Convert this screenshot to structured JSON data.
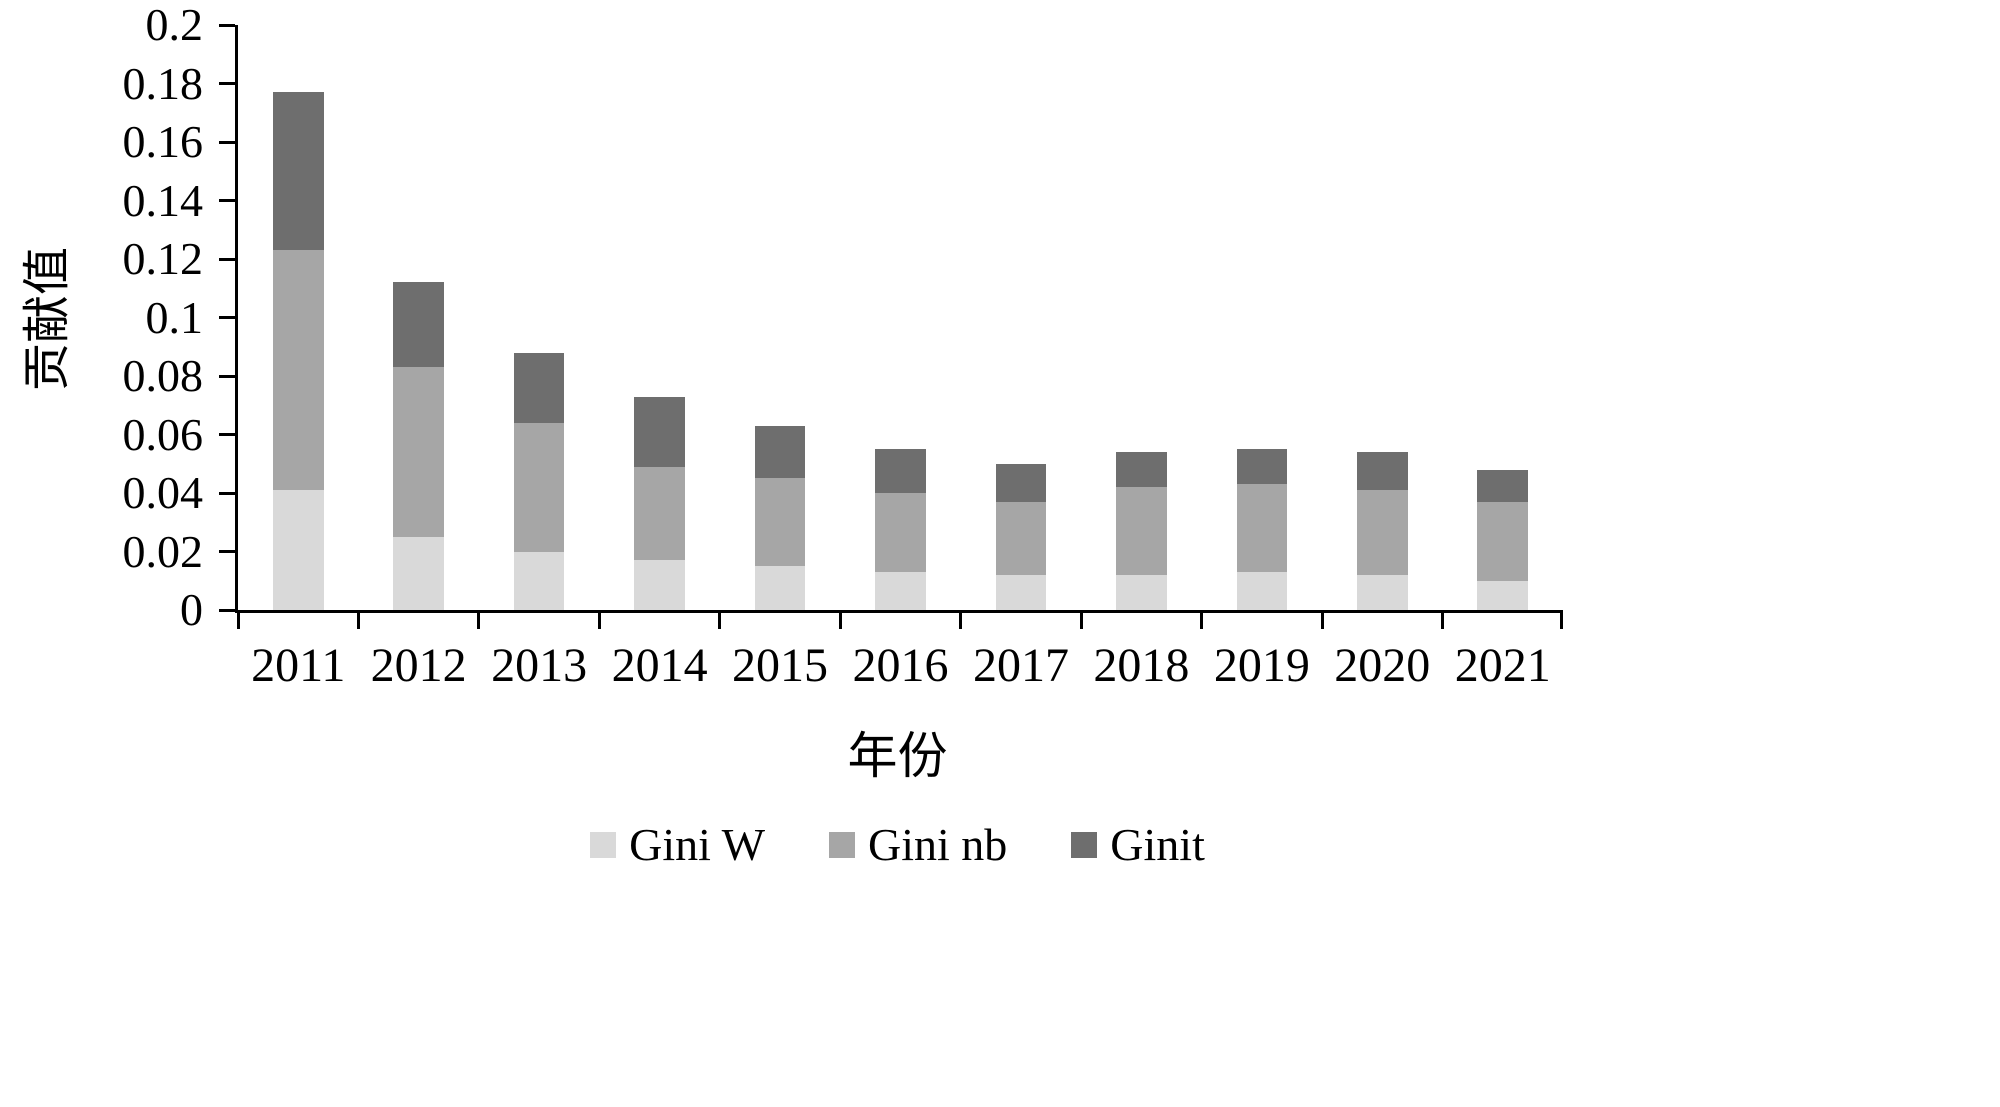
{
  "chart_data": {
    "type": "bar",
    "stacked": true,
    "title": "",
    "xlabel": "年份",
    "ylabel": "贡献值",
    "categories": [
      "2011",
      "2012",
      "2013",
      "2014",
      "2015",
      "2016",
      "2017",
      "2018",
      "2019",
      "2020",
      "2021"
    ],
    "series": [
      {
        "name": "Gini W",
        "color": "#d9d9d9",
        "values": [
          0.041,
          0.025,
          0.02,
          0.017,
          0.015,
          0.013,
          0.012,
          0.012,
          0.013,
          0.012,
          0.01
        ]
      },
      {
        "name": "Gini nb",
        "color": "#a6a6a6",
        "values": [
          0.082,
          0.058,
          0.044,
          0.032,
          0.03,
          0.027,
          0.025,
          0.03,
          0.03,
          0.029,
          0.027
        ]
      },
      {
        "name": "Ginit",
        "color": "#6e6e6e",
        "values": [
          0.054,
          0.029,
          0.024,
          0.024,
          0.018,
          0.015,
          0.013,
          0.012,
          0.012,
          0.013,
          0.011
        ]
      }
    ],
    "ylim": [
      0,
      0.2
    ],
    "ytick_step": 0.02,
    "yticks": [
      "0",
      "0.02",
      "0.04",
      "0.06",
      "0.08",
      "0.1",
      "0.12",
      "0.14",
      "0.16",
      "0.18",
      "0.2"
    ],
    "legend_position": "bottom",
    "grid": false,
    "axis_color": "#000000",
    "background_color": "#ffffff"
  }
}
